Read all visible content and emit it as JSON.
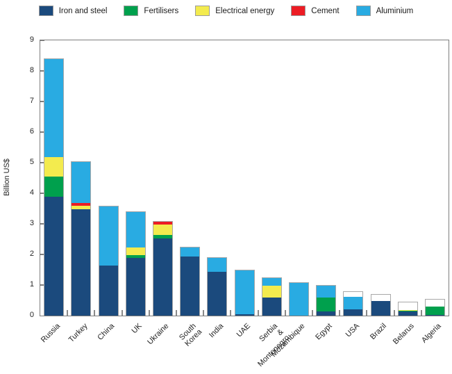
{
  "legend": {
    "items": [
      {
        "label": "Iron and steel",
        "color": "#1b4a7d"
      },
      {
        "label": "Fertilisers",
        "color": "#00a04d"
      },
      {
        "label": "Electrical energy",
        "color": "#f3eb4e"
      },
      {
        "label": "Cement",
        "color": "#ec1c24"
      },
      {
        "label": "Aluminium",
        "color": "#29abe2"
      }
    ]
  },
  "chart_data": {
    "type": "bar",
    "stacked": true,
    "title": "",
    "xlabel": "",
    "ylabel": "Billion US$",
    "ylim": [
      0,
      9
    ],
    "yticks": [
      0,
      1,
      2,
      3,
      4,
      5,
      6,
      7,
      8,
      9
    ],
    "grid": false,
    "legend_position": "top",
    "categories": [
      "Russia",
      "Turkey",
      "China",
      "UK",
      "Ukraine",
      "South Korea",
      "India",
      "UAE",
      "Serbia\n& Montenegro",
      "Mozambique",
      "Egypt",
      "USA",
      "Brazil",
      "Belarus",
      "Algeria"
    ],
    "series": [
      {
        "name": "Iron and steel",
        "color": "#1b4a7d",
        "values": [
          3.9,
          3.5,
          1.65,
          1.9,
          2.55,
          1.95,
          1.45,
          0.05,
          0.6,
          0,
          0.15,
          0.25,
          0.7,
          0.3,
          0.05
        ]
      },
      {
        "name": "Fertilisers",
        "color": "#00a04d",
        "values": [
          0.65,
          0,
          0,
          0.1,
          0.1,
          0,
          0,
          0,
          0,
          0,
          0.45,
          0,
          0,
          0.05,
          0.5
        ]
      },
      {
        "name": "Electrical energy",
        "color": "#f3eb4e",
        "values": [
          0.65,
          0.1,
          0,
          0.25,
          0.35,
          0,
          0,
          0,
          0.4,
          0,
          0,
          0,
          0,
          0.05,
          0
        ]
      },
      {
        "name": "Cement",
        "color": "#ec1c24",
        "values": [
          0,
          0.1,
          0,
          0,
          0.1,
          0,
          0,
          0,
          0,
          0,
          0,
          0,
          0,
          0.05,
          0
        ]
      },
      {
        "name": "Aluminium",
        "color": "#29abe2",
        "values": [
          3.2,
          1.35,
          1.95,
          1.15,
          0,
          0.3,
          0.45,
          1.45,
          0.25,
          1.1,
          0.4,
          0.55,
          0,
          0,
          0
        ]
      }
    ]
  }
}
